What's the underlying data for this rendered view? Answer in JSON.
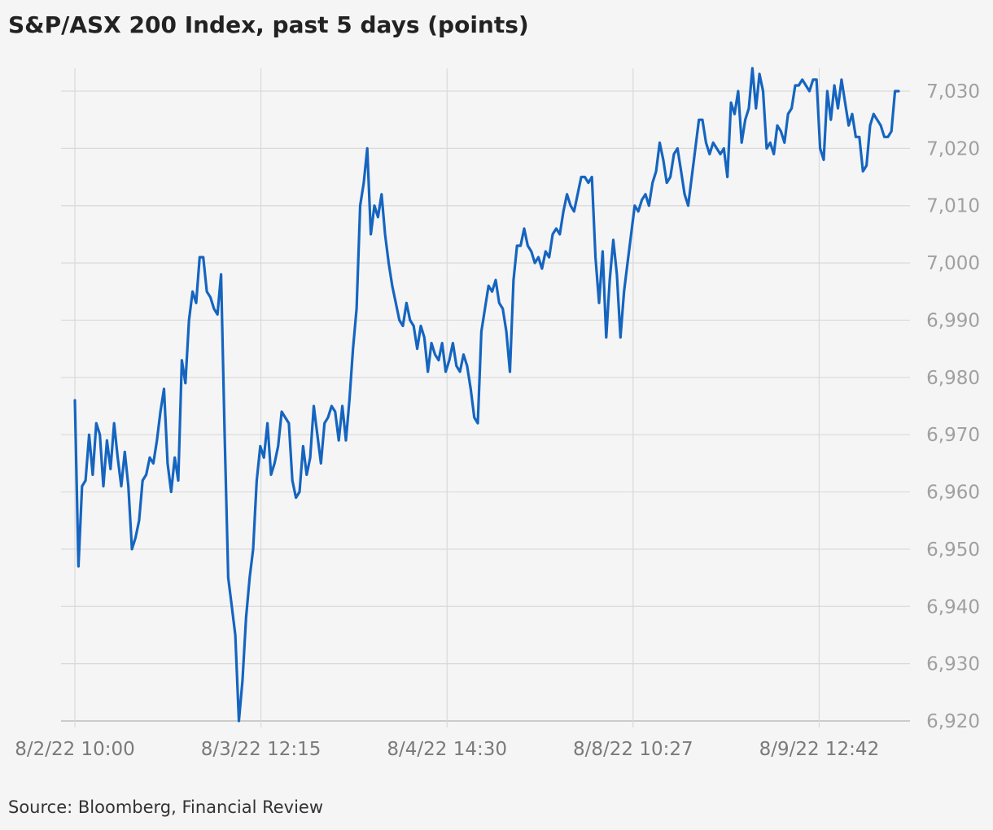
{
  "chart_data": {
    "type": "line",
    "title": "S&P/ASX 200 Index, past 5 days (points)",
    "source": "Source: Bloomberg, Financial Review",
    "xlabel": "",
    "ylabel": "",
    "x_ticks": [
      "8/2/22 10:00",
      "8/3/22 12:15",
      "8/4/22 14:30",
      "8/8/22 10:27",
      "8/9/22 12:42"
    ],
    "y_ticks": [
      6920,
      6930,
      6940,
      6950,
      6960,
      6970,
      6980,
      6990,
      7000,
      7010,
      7020,
      7030
    ],
    "ylim": [
      6920,
      7035
    ],
    "grid": true,
    "y_axis_position": "right",
    "line_color": "#1565c0",
    "grid_color": "#d9d9d9",
    "series": [
      {
        "values": [
          6976,
          6947,
          6961,
          6962,
          6970,
          6963,
          6972,
          6970,
          6961,
          6969,
          6964,
          6972,
          6966,
          6961,
          6967,
          6961,
          6950,
          6952,
          6955,
          6962,
          6963,
          6966,
          6965,
          6969,
          6974,
          6978,
          6965,
          6960,
          6966,
          6962,
          6983,
          6979,
          6990,
          6995,
          6993,
          7001,
          7001,
          6995,
          6994,
          6992,
          6991,
          6998,
          6970,
          6945,
          6940,
          6935,
          6920,
          6927,
          6938,
          6945,
          6950,
          6962,
          6968,
          6966,
          6972,
          6963,
          6965,
          6968,
          6974,
          6973,
          6972,
          6962,
          6959,
          6960,
          6968,
          6963,
          6966,
          6975,
          6970,
          6965,
          6972,
          6973,
          6975,
          6974,
          6969,
          6975,
          6969,
          6976,
          6985,
          6992,
          7010,
          7014,
          7020,
          7005,
          7010,
          7008,
          7012,
          7005,
          7000,
          6996,
          6993,
          6990,
          6989,
          6993,
          6990,
          6989,
          6985,
          6989,
          6987,
          6981,
          6986,
          6984,
          6983,
          6986,
          6981,
          6983,
          6986,
          6982,
          6981,
          6984,
          6982,
          6978,
          6973,
          6972,
          6988,
          6992,
          6996,
          6995,
          6997,
          6993,
          6992,
          6988,
          6981,
          6997,
          7003,
          7003,
          7006,
          7003,
          7002,
          7000,
          7001,
          6999,
          7002,
          7001,
          7005,
          7006,
          7005,
          7009,
          7012,
          7010,
          7009,
          7012,
          7015,
          7015,
          7014,
          7015,
          7001,
          6993,
          7002,
          6987,
          6997,
          7004,
          6998,
          6987,
          6995,
          7000,
          7005,
          7010,
          7009,
          7011,
          7012,
          7010,
          7014,
          7016,
          7021,
          7018,
          7014,
          7015,
          7019,
          7020,
          7016,
          7012,
          7010,
          7015,
          7020,
          7025,
          7025,
          7021,
          7019,
          7021,
          7020,
          7019,
          7020,
          7015,
          7028,
          7026,
          7030,
          7021,
          7025,
          7027,
          7034,
          7027,
          7033,
          7030,
          7020,
          7021,
          7019,
          7024,
          7023,
          7021,
          7026,
          7027,
          7031,
          7031,
          7032,
          7031,
          7030,
          7032,
          7032,
          7020,
          7018,
          7030,
          7025,
          7031,
          7027,
          7032,
          7028,
          7024,
          7026,
          7022,
          7022,
          7016,
          7017,
          7024,
          7026,
          7025,
          7024,
          7022,
          7022,
          7023,
          7030,
          7030
        ]
      }
    ]
  }
}
